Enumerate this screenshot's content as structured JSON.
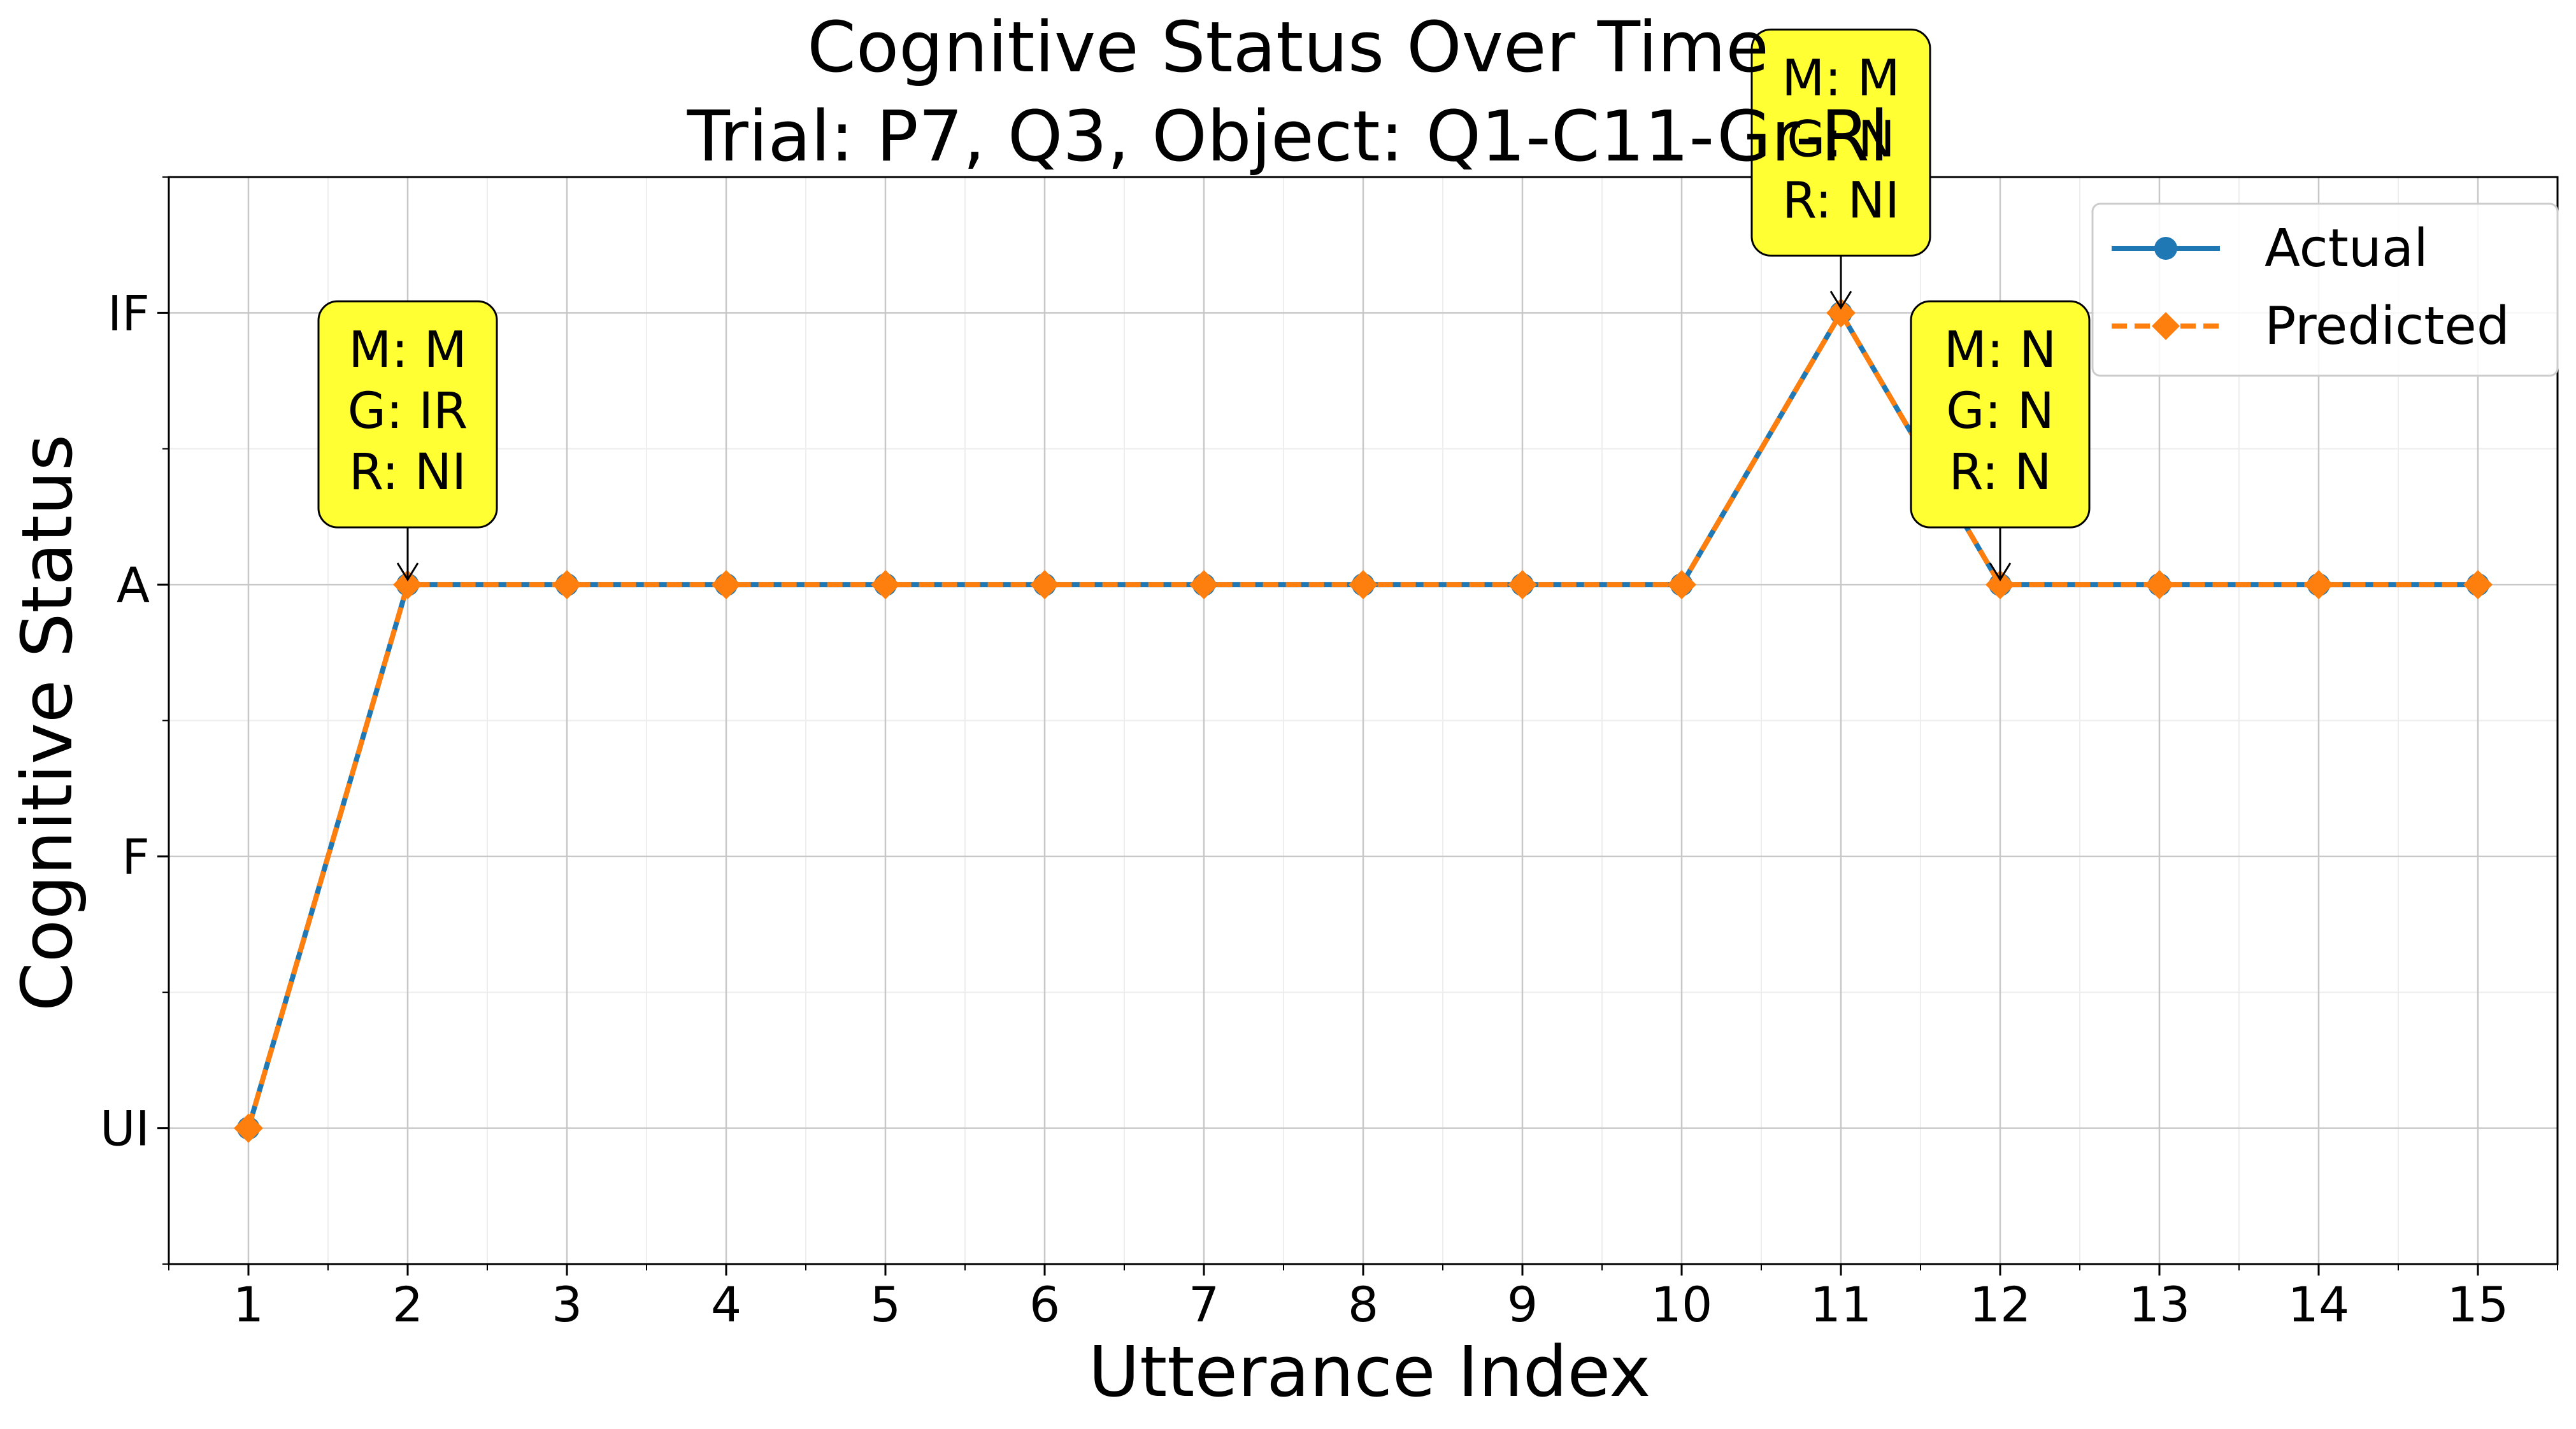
{
  "chart_data": {
    "type": "line",
    "title": "Cognitive Status Over Time",
    "subtitle": "Trial: P7, Q3, Object: Q1-C11-Gr-Rl",
    "xlabel": "Utterance Index",
    "ylabel": "Cognitive Status",
    "x": [
      1,
      2,
      3,
      4,
      5,
      6,
      7,
      8,
      9,
      10,
      11,
      12,
      13,
      14,
      15
    ],
    "y_categories": [
      "UI",
      "F",
      "A",
      "IF"
    ],
    "xlim": [
      0.5,
      15.5
    ],
    "ylim": [
      -0.5,
      3.5
    ],
    "grid": true,
    "legend_position": "top-right",
    "series": [
      {
        "name": "Actual",
        "color": "#1f77b4",
        "marker": "circle",
        "line_style": "solid",
        "values": [
          "UI",
          "A",
          "A",
          "A",
          "A",
          "A",
          "A",
          "A",
          "A",
          "A",
          "IF",
          "A",
          "A",
          "A",
          "A"
        ]
      },
      {
        "name": "Predicted",
        "color": "#ff7f0e",
        "marker": "diamond",
        "line_style": "dashed",
        "values": [
          "UI",
          "A",
          "A",
          "A",
          "A",
          "A",
          "A",
          "A",
          "A",
          "A",
          "IF",
          "A",
          "A",
          "A",
          "A"
        ]
      }
    ],
    "annotations": [
      {
        "x": 2,
        "y": "A",
        "lines": [
          "M: M",
          "G: IR",
          "R: NI"
        ]
      },
      {
        "x": 11,
        "y": "IF",
        "lines": [
          "M: M",
          "G: N",
          "R: NI"
        ]
      },
      {
        "x": 12,
        "y": "A",
        "lines": [
          "M: N",
          "G: N",
          "R: N"
        ]
      }
    ],
    "annotation_color": "#ffff33"
  }
}
